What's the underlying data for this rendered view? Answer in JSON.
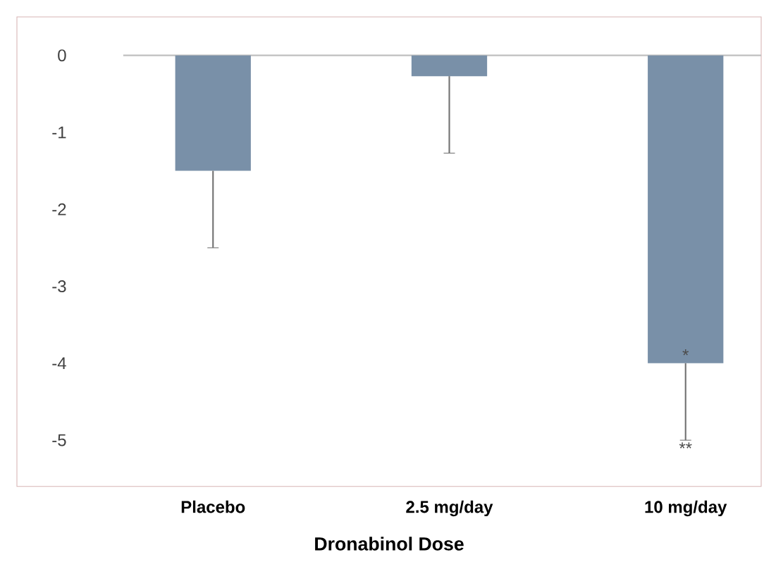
{
  "chart_data": {
    "type": "bar",
    "xlabel": "Dronabinol Dose",
    "categories": [
      "Placebo",
      "2.5 mg/day",
      "10 mg/day"
    ],
    "values": [
      -1.5,
      -0.27,
      -4.0
    ],
    "errors": [
      [
        -2.5,
        -1.5
      ],
      [
        -1.27,
        -0.27
      ],
      [
        -5.0,
        -4.0
      ]
    ],
    "color": "#7990a8",
    "ylim": [
      -5.6,
      0.5
    ],
    "yticks": [
      0,
      -1,
      -2,
      -3,
      -4,
      -5
    ],
    "annotations": [
      "*",
      "**"
    ]
  }
}
